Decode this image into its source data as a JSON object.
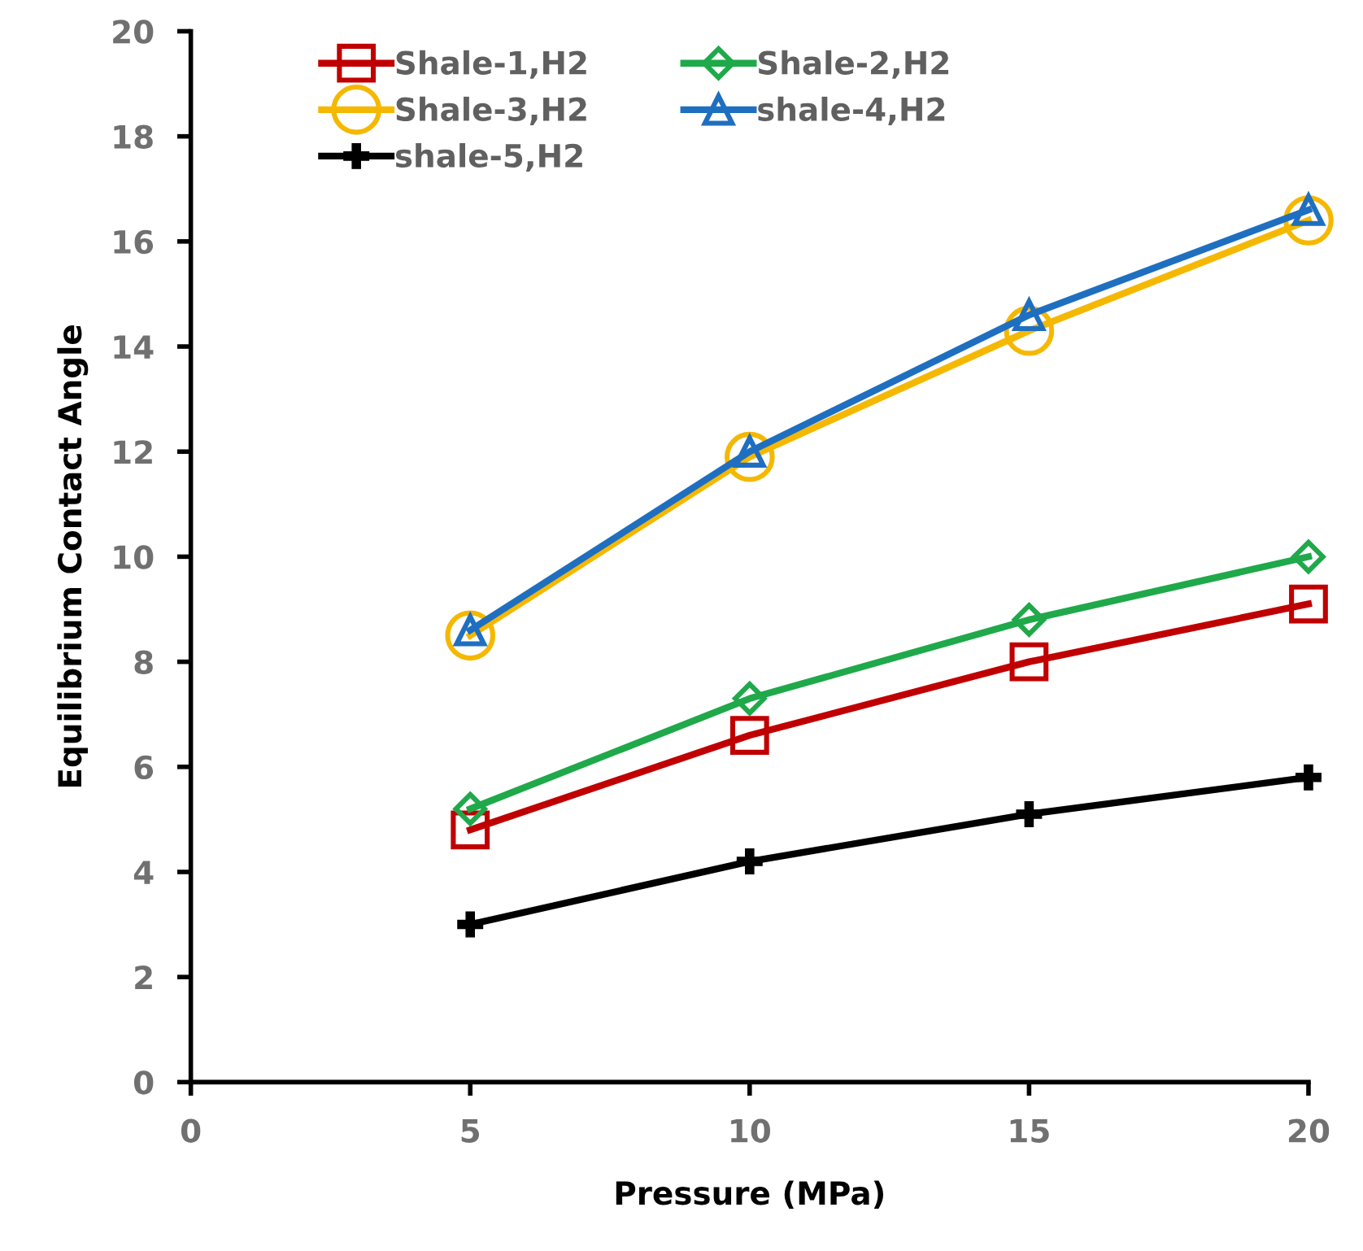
{
  "chart_data": {
    "type": "line",
    "xlabel": "Pressure (MPa)",
    "ylabel": "Equilibrium Contact Angle",
    "x": [
      5,
      10,
      15,
      20
    ],
    "xlim": [
      0,
      20
    ],
    "xticks": [
      0,
      5,
      10,
      15,
      20
    ],
    "ylim": [
      0,
      20
    ],
    "yticks": [
      0,
      2,
      4,
      6,
      8,
      10,
      12,
      14,
      16,
      18,
      20
    ],
    "grid": false,
    "legend": "top left",
    "line_style": "solid",
    "series": [
      {
        "name": "Shale-1,H2",
        "color": "#c00000",
        "marker": "square",
        "values": [
          4.8,
          6.6,
          8.0,
          9.1
        ]
      },
      {
        "name": "Shale-2,H2",
        "color": "#1fa94a",
        "marker": "diamond",
        "values": [
          5.2,
          7.3,
          8.8,
          10.0
        ]
      },
      {
        "name": "Shale-3,H2",
        "color": "#f5b800",
        "marker": "circle",
        "values": [
          8.5,
          11.9,
          14.3,
          16.4
        ]
      },
      {
        "name": "shale-4,H2",
        "color": "#1f6fc0",
        "marker": "triangle",
        "values": [
          8.6,
          12.0,
          14.6,
          16.6
        ]
      },
      {
        "name": "shale-5,H2",
        "color": "#000000",
        "marker": "cross",
        "values": [
          3.0,
          4.2,
          5.1,
          5.8
        ]
      }
    ]
  }
}
